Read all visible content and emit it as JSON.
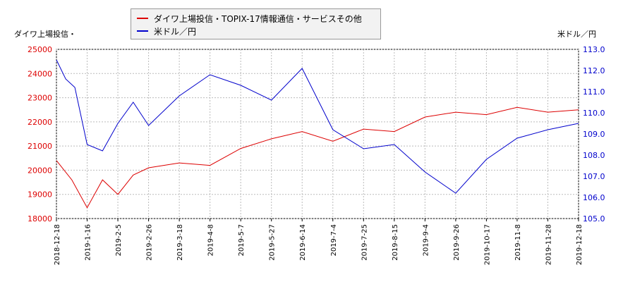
{
  "legend": {
    "items": [
      {
        "label": "ダイワ上場投信・TOPIX-17情報通信・サービスその他",
        "color": "#dd0000"
      },
      {
        "label": "米ドル／円",
        "color": "#0000cc"
      }
    ]
  },
  "axes": {
    "left_title": "ダイワ上場投信・",
    "right_title": "米ドル／円"
  },
  "chart_data": {
    "type": "line",
    "grid": true,
    "legend_position": "top-center",
    "x_ticks": [
      "2018-12-18",
      "2019-1-16",
      "2019-2-5",
      "2019-2-26",
      "2019-3-18",
      "2019-4-8",
      "2019-5-7",
      "2019-5-27",
      "2019-6-14",
      "2019-7-4",
      "2019-7-25",
      "2019-8-15",
      "2019-9-4",
      "2019-9-26",
      "2019-10-17",
      "2019-11-8",
      "2019-11-28",
      "2019-12-18"
    ],
    "y_left": {
      "label": "ダイワ上場投信・",
      "ylim": [
        18000,
        25000
      ],
      "ticks": [
        18000,
        19000,
        20000,
        21000,
        22000,
        23000,
        24000,
        25000
      ],
      "color": "#dd0000"
    },
    "y_right": {
      "label": "米ドル／円",
      "ylim": [
        105.0,
        113.0
      ],
      "ticks": [
        "105.0",
        "106.0",
        "107.0",
        "108.0",
        "109.0",
        "110.0",
        "111.0",
        "112.0",
        "113.0"
      ],
      "color": "#0000cc"
    },
    "series": [
      {
        "name": "ダイワ上場投信・TOPIX-17情報通信・サービスその他",
        "axis": "left",
        "color": "#dd0000",
        "x": [
          0,
          0.5,
          1,
          1.5,
          2,
          2.5,
          3,
          4,
          5,
          6,
          7,
          8,
          9,
          10,
          11,
          12,
          13,
          14,
          15,
          16,
          17
        ],
        "y": [
          20400,
          19600,
          18450,
          19600,
          19000,
          19800,
          20100,
          20300,
          20200,
          20900,
          21300,
          21600,
          21200,
          21700,
          21600,
          22200,
          22400,
          22300,
          22600,
          22400,
          22500
        ]
      },
      {
        "name": "米ドル／円",
        "axis": "right",
        "color": "#0000cc",
        "x": [
          0,
          0.3,
          0.6,
          1,
          1.5,
          2,
          2.5,
          3,
          4,
          5,
          6,
          7,
          8,
          9,
          10,
          11,
          12,
          13,
          14,
          15,
          16,
          17
        ],
        "y": [
          112.5,
          111.6,
          111.2,
          108.5,
          108.2,
          109.5,
          110.5,
          109.4,
          110.8,
          111.8,
          111.3,
          110.6,
          112.1,
          109.2,
          108.3,
          108.5,
          107.2,
          106.2,
          107.8,
          108.8,
          109.2,
          109.5
        ]
      }
    ]
  }
}
